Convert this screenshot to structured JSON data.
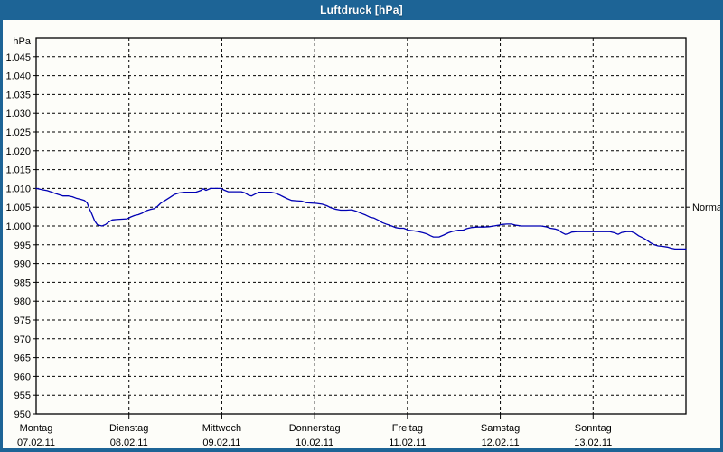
{
  "window": {
    "title": "Luftdruck [hPa]"
  },
  "colors": {
    "titlebar_bg": "#1d6496",
    "titlebar_text": "#ffffff",
    "frame_border": "#1d6496",
    "panel_bg": "#fdfdf9",
    "grid": "#000000",
    "axis": "#000000",
    "tick_text": "#000000",
    "series_line": "#0000b4"
  },
  "chart_data": {
    "type": "line",
    "title": "Luftdruck [hPa]",
    "grid": "dashed",
    "legend_position": "none",
    "y_axis": {
      "unit_label": "hPa",
      "min": 950,
      "max": 1050,
      "tick_step": 5,
      "ticks": [
        {
          "v": 1045,
          "label": "1.045"
        },
        {
          "v": 1040,
          "label": "1.040"
        },
        {
          "v": 1035,
          "label": "1.035"
        },
        {
          "v": 1030,
          "label": "1.030"
        },
        {
          "v": 1025,
          "label": "1.025"
        },
        {
          "v": 1020,
          "label": "1.020"
        },
        {
          "v": 1015,
          "label": "1.015"
        },
        {
          "v": 1010,
          "label": "1.010"
        },
        {
          "v": 1005,
          "label": "1.005"
        },
        {
          "v": 1000,
          "label": "1.000"
        },
        {
          "v": 995,
          "label": "995"
        },
        {
          "v": 990,
          "label": "990"
        },
        {
          "v": 985,
          "label": "985"
        },
        {
          "v": 980,
          "label": "980"
        },
        {
          "v": 975,
          "label": "975"
        },
        {
          "v": 970,
          "label": "970"
        },
        {
          "v": 965,
          "label": "965"
        },
        {
          "v": 960,
          "label": "960"
        },
        {
          "v": 955,
          "label": "955"
        },
        {
          "v": 950,
          "label": "950"
        }
      ]
    },
    "x_axis": {
      "days": [
        {
          "name": "Montag",
          "date": "07.02.11"
        },
        {
          "name": "Dienstag",
          "date": "08.02.11"
        },
        {
          "name": "Mittwoch",
          "date": "09.02.11"
        },
        {
          "name": "Donnerstag",
          "date": "10.02.11"
        },
        {
          "name": "Freitag",
          "date": "11.02.11"
        },
        {
          "name": "Samstag",
          "date": "12.02.11"
        },
        {
          "name": "Sonntag",
          "date": "13.02.11"
        }
      ]
    },
    "annotations": [
      {
        "label": "Normal",
        "value": 1005,
        "side": "right"
      }
    ],
    "series": [
      {
        "name": "Luftdruck",
        "color": "#0000b4",
        "points": [
          [
            0,
            1010
          ],
          [
            0.04,
            1009.8
          ],
          [
            0.08,
            1009.6
          ],
          [
            0.12,
            1009.4
          ],
          [
            0.17,
            1009
          ],
          [
            0.2,
            1008.7
          ],
          [
            0.24,
            1008.4
          ],
          [
            0.29,
            1008
          ],
          [
            0.35,
            1008
          ],
          [
            0.39,
            1007.8
          ],
          [
            0.43,
            1007.4
          ],
          [
            0.48,
            1007.1
          ],
          [
            0.52,
            1006.8
          ],
          [
            0.55,
            1006.1
          ],
          [
            0.57,
            1004.8
          ],
          [
            0.6,
            1003.2
          ],
          [
            0.63,
            1001.4
          ],
          [
            0.66,
            1000.3
          ],
          [
            0.71,
            1000
          ],
          [
            0.75,
            1000.4
          ],
          [
            0.78,
            1001
          ],
          [
            0.82,
            1001.6
          ],
          [
            0.86,
            1001.7
          ],
          [
            0.92,
            1001.8
          ],
          [
            0.98,
            1001.9
          ],
          [
            1.02,
            1002.4
          ],
          [
            1.06,
            1002.8
          ],
          [
            1.1,
            1003
          ],
          [
            1.14,
            1003.4
          ],
          [
            1.18,
            1004
          ],
          [
            1.23,
            1004.4
          ],
          [
            1.27,
            1004.6
          ],
          [
            1.31,
            1005.3
          ],
          [
            1.34,
            1006
          ],
          [
            1.39,
            1006.8
          ],
          [
            1.44,
            1007.6
          ],
          [
            1.49,
            1008.4
          ],
          [
            1.54,
            1008.8
          ],
          [
            1.6,
            1009
          ],
          [
            1.67,
            1009
          ],
          [
            1.72,
            1009
          ],
          [
            1.77,
            1009.4
          ],
          [
            1.8,
            1009.9
          ],
          [
            1.83,
            1009.5
          ],
          [
            1.88,
            1010
          ],
          [
            1.94,
            1010
          ],
          [
            1.99,
            1010
          ],
          [
            2.03,
            1009.5
          ],
          [
            2.07,
            1009.1
          ],
          [
            2.14,
            1009.1
          ],
          [
            2.21,
            1009.1
          ],
          [
            2.25,
            1008.8
          ],
          [
            2.29,
            1008.2
          ],
          [
            2.32,
            1008
          ],
          [
            2.36,
            1008.5
          ],
          [
            2.4,
            1009
          ],
          [
            2.47,
            1009
          ],
          [
            2.53,
            1009
          ],
          [
            2.58,
            1008.7
          ],
          [
            2.63,
            1008.2
          ],
          [
            2.67,
            1007.7
          ],
          [
            2.71,
            1007.2
          ],
          [
            2.75,
            1006.8
          ],
          [
            2.8,
            1006.7
          ],
          [
            2.86,
            1006.6
          ],
          [
            2.91,
            1006.2
          ],
          [
            2.96,
            1006.1
          ],
          [
            3.02,
            1006
          ],
          [
            3.08,
            1005.8
          ],
          [
            3.13,
            1005.4
          ],
          [
            3.17,
            1004.9
          ],
          [
            3.22,
            1004.5
          ],
          [
            3.28,
            1004.2
          ],
          [
            3.34,
            1004.2
          ],
          [
            3.4,
            1004.3
          ],
          [
            3.45,
            1003.9
          ],
          [
            3.51,
            1003.3
          ],
          [
            3.55,
            1002.9
          ],
          [
            3.6,
            1002.3
          ],
          [
            3.64,
            1002.1
          ],
          [
            3.69,
            1001.5
          ],
          [
            3.73,
            1000.9
          ],
          [
            3.78,
            1000.4
          ],
          [
            3.83,
            1000
          ],
          [
            3.87,
            999.6
          ],
          [
            3.91,
            999.4
          ],
          [
            3.96,
            999.4
          ],
          [
            4.01,
            998.9
          ],
          [
            4.07,
            998.7
          ],
          [
            4.12,
            998.5
          ],
          [
            4.17,
            998.2
          ],
          [
            4.21,
            997.9
          ],
          [
            4.25,
            997.4
          ],
          [
            4.28,
            997.1
          ],
          [
            4.34,
            997.1
          ],
          [
            4.39,
            997.6
          ],
          [
            4.44,
            998.2
          ],
          [
            4.49,
            998.6
          ],
          [
            4.55,
            998.9
          ],
          [
            4.6,
            998.9
          ],
          [
            4.64,
            999.3
          ],
          [
            4.69,
            999.6
          ],
          [
            4.75,
            999.7
          ],
          [
            4.82,
            999.7
          ],
          [
            4.88,
            999.8
          ],
          [
            4.93,
            1000
          ],
          [
            4.98,
            1000.2
          ],
          [
            5.02,
            1000.4
          ],
          [
            5.07,
            1000.5
          ],
          [
            5.12,
            1000.5
          ],
          [
            5.17,
            1000.2
          ],
          [
            5.23,
            1000
          ],
          [
            5.3,
            1000
          ],
          [
            5.37,
            1000
          ],
          [
            5.44,
            1000
          ],
          [
            5.49,
            999.8
          ],
          [
            5.54,
            999.4
          ],
          [
            5.59,
            999.2
          ],
          [
            5.63,
            998.9
          ],
          [
            5.66,
            998.3
          ],
          [
            5.7,
            997.8
          ],
          [
            5.74,
            998
          ],
          [
            5.77,
            998.4
          ],
          [
            5.83,
            998.5
          ],
          [
            5.9,
            998.5
          ],
          [
            5.97,
            998.5
          ],
          [
            6.04,
            998.5
          ],
          [
            6.11,
            998.5
          ],
          [
            6.18,
            998.5
          ],
          [
            6.23,
            998.2
          ],
          [
            6.27,
            997.8
          ],
          [
            6.31,
            998.3
          ],
          [
            6.36,
            998.5
          ],
          [
            6.41,
            998.5
          ],
          [
            6.45,
            998.1
          ],
          [
            6.49,
            997.4
          ],
          [
            6.54,
            996.8
          ],
          [
            6.58,
            996.2
          ],
          [
            6.62,
            995.5
          ],
          [
            6.66,
            995
          ],
          [
            6.7,
            994.7
          ],
          [
            6.75,
            994.6
          ],
          [
            6.8,
            994.4
          ],
          [
            6.84,
            994.1
          ],
          [
            6.88,
            993.9
          ],
          [
            6.94,
            993.9
          ],
          [
            7,
            993.9
          ]
        ]
      }
    ]
  }
}
